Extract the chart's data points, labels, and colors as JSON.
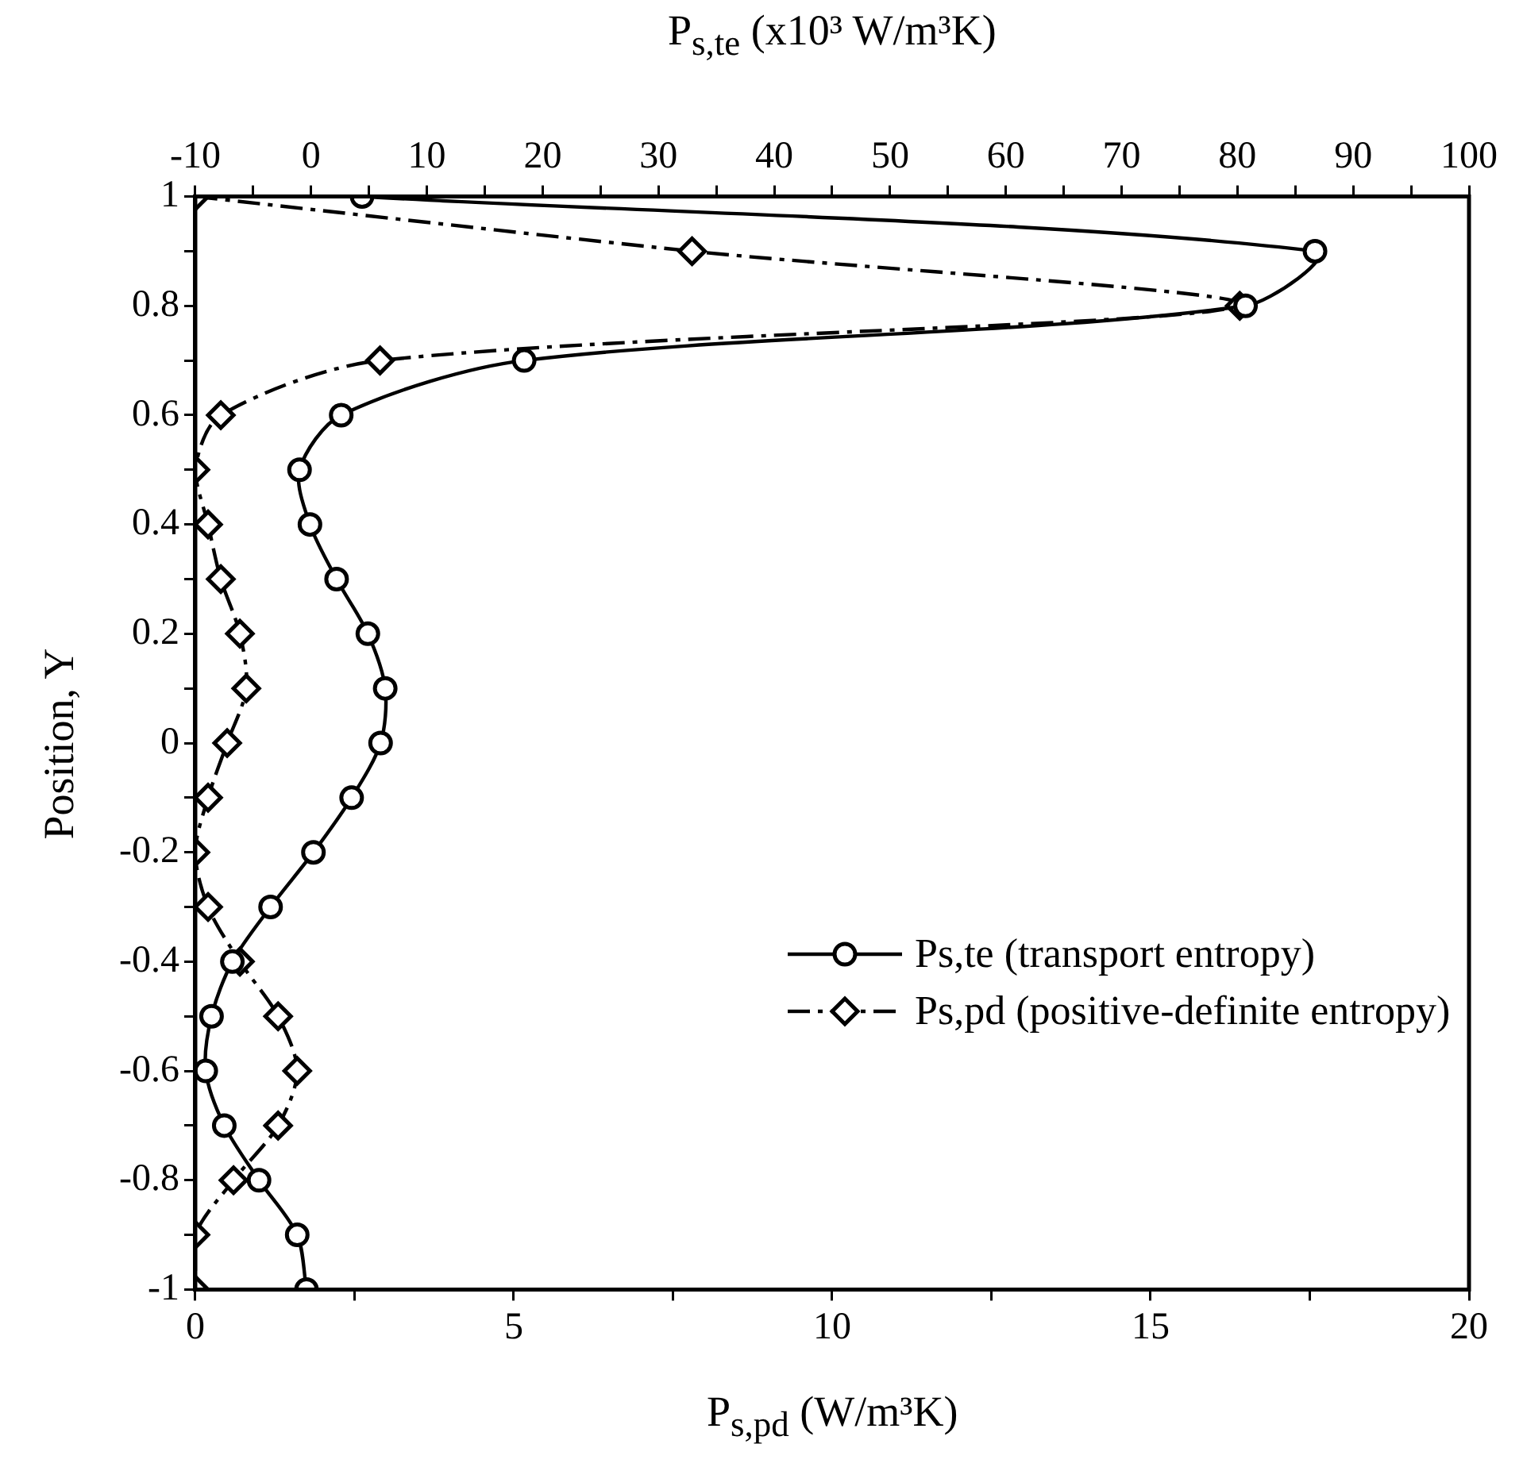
{
  "chart_data": {
    "type": "line",
    "xlabel": "P$_{s,pd}$ (W/m³K)",
    "x2label": "P$_{s,te}$ (x10³ W/m³K)",
    "ylabel": "Position, Y",
    "xlim": [
      0,
      20
    ],
    "xticks": [
      0,
      {
        "value": 2.5,
        "label": null
      },
      5,
      {
        "value": 7.5,
        "label": null
      },
      10,
      {
        "value": 12.5,
        "label": null
      },
      15,
      {
        "value": 17.5,
        "label": null
      },
      20
    ],
    "x2lim": [
      -10,
      100
    ],
    "x2ticks": [
      -10,
      {
        "value": -5,
        "label": null
      },
      0,
      {
        "value": 5,
        "label": null
      },
      10,
      {
        "value": 15,
        "label": null
      },
      20,
      {
        "value": 25,
        "label": null
      },
      30,
      {
        "value": 35,
        "label": null
      },
      40,
      {
        "value": 45,
        "label": null
      },
      50,
      {
        "value": 55,
        "label": null
      },
      60,
      {
        "value": 65,
        "label": null
      },
      70,
      {
        "value": 75,
        "label": null
      },
      80,
      {
        "value": 85,
        "label": null
      },
      90,
      {
        "value": 95,
        "label": null
      },
      100
    ],
    "ylim": [
      -1,
      1
    ],
    "yticks": [
      -1,
      {
        "value": -0.9,
        "label": null
      },
      -0.8,
      {
        "value": -0.7,
        "label": null
      },
      -0.6,
      {
        "value": -0.5,
        "label": null
      },
      -0.4,
      {
        "value": -0.3,
        "label": null
      },
      -0.2,
      {
        "value": -0.1,
        "label": null
      },
      0,
      {
        "value": 0.1,
        "label": null
      },
      0.2,
      {
        "value": 0.3,
        "label": null
      },
      0.4,
      {
        "value": 0.5,
        "label": null
      },
      0.6,
      {
        "value": 0.7,
        "label": null
      },
      0.8,
      {
        "value": 0.9,
        "label": null
      },
      1
    ],
    "grid": false,
    "legend": "bottom right",
    "series": [
      {
        "name": "Ps,te (transport entropy)",
        "color": "#000000",
        "axis": "x2",
        "marker": "circle",
        "line_style": "solid",
        "x": [
          4.4,
          86.7,
          80.7,
          18.4,
          2.6,
          -1.0,
          -0.1,
          2.2,
          4.9,
          6.4,
          6.0,
          3.5,
          0.2,
          -3.5,
          -6.8,
          -8.6,
          -9.1,
          -7.5,
          -4.5,
          -1.2,
          -0.4
        ],
        "values": [
          1,
          0.9,
          0.8,
          0.7,
          0.6,
          0.5,
          0.4,
          0.3,
          0.2,
          0.1,
          0,
          -0.1,
          -0.2,
          -0.3,
          -0.4,
          -0.5,
          -0.6,
          -0.7,
          -0.8,
          -0.9,
          -1
        ]
      },
      {
        "name": "Ps,pd (positive-definite entropy)",
        "color": "#000000",
        "marker": "diamond",
        "line_style": "dashed",
        "x": [
          0.0,
          7.8,
          16.4,
          2.9,
          0.4,
          0.0,
          0.2,
          0.4,
          0.7,
          0.8,
          0.5,
          0.2,
          0.0,
          0.2,
          0.7,
          1.3,
          1.6,
          1.3,
          0.6,
          0.0,
          0.0
        ],
        "values": [
          1,
          0.9,
          0.8,
          0.7,
          0.6,
          0.5,
          0.4,
          0.3,
          0.2,
          0.1,
          0,
          -0.1,
          -0.2,
          -0.3,
          -0.4,
          -0.5,
          -0.6,
          -0.7,
          -0.8,
          -0.9,
          -1
        ]
      }
    ]
  }
}
